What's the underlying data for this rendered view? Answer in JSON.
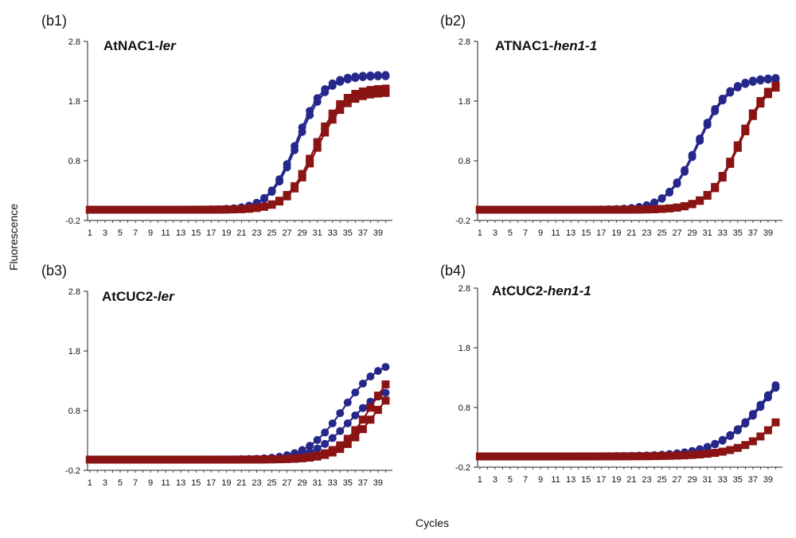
{
  "figure": {
    "ylabel": "Fluorescence",
    "xlabel": "Cycles"
  },
  "colors": {
    "series_a": "#26278a",
    "series_b": "#8a1414",
    "axis": "#222222"
  },
  "chart_data": [
    {
      "type": "line",
      "panel_label": "(b1)",
      "title_plain": "AtNAC1-",
      "title_italic": "ler",
      "ylim": [
        -0.2,
        2.8
      ],
      "yticks": [
        -0.2,
        0.8,
        1.8,
        2.8
      ],
      "ytick_labels": [
        "-0.2",
        "0.8",
        "1.8",
        "2.8"
      ],
      "xlim": [
        1,
        40
      ],
      "xticks": [
        1,
        3,
        5,
        7,
        9,
        11,
        13,
        15,
        17,
        19,
        21,
        23,
        25,
        27,
        29,
        31,
        33,
        35,
        37,
        39
      ],
      "series": [
        {
          "name": "blue-1",
          "color_key": "series_a",
          "marker": "circle",
          "baseline": -0.02,
          "plateau": 2.22,
          "midpoint": 28.4,
          "slope": 0.55
        },
        {
          "name": "blue-2",
          "color_key": "series_a",
          "marker": "circle",
          "baseline": -0.02,
          "plateau": 2.24,
          "midpoint": 28.2,
          "slope": 0.56
        },
        {
          "name": "red-1",
          "color_key": "series_b",
          "marker": "square",
          "baseline": -0.02,
          "plateau": 2.02,
          "midpoint": 30.6,
          "slope": 0.55
        },
        {
          "name": "red-2",
          "color_key": "series_b",
          "marker": "square",
          "baseline": -0.02,
          "plateau": 1.95,
          "midpoint": 30.8,
          "slope": 0.54
        }
      ]
    },
    {
      "type": "line",
      "panel_label": "(b2)",
      "title_plain": "ATNAC1-",
      "title_italic": "hen1-1",
      "ylim": [
        -0.2,
        2.8
      ],
      "yticks": [
        -0.2,
        0.8,
        1.8,
        2.8
      ],
      "ytick_labels": [
        "-0.2",
        "0.8",
        "1.8",
        "2.8"
      ],
      "xlim": [
        1,
        40
      ],
      "xticks": [
        1,
        3,
        5,
        7,
        9,
        11,
        13,
        15,
        17,
        19,
        21,
        23,
        25,
        27,
        29,
        31,
        33,
        35,
        37,
        39
      ],
      "series": [
        {
          "name": "blue-1",
          "color_key": "series_a",
          "marker": "circle",
          "baseline": -0.02,
          "plateau": 2.2,
          "midpoint": 29.7,
          "slope": 0.5
        },
        {
          "name": "blue-2",
          "color_key": "series_a",
          "marker": "circle",
          "baseline": -0.02,
          "plateau": 2.18,
          "midpoint": 29.8,
          "slope": 0.5
        },
        {
          "name": "red-1",
          "color_key": "series_b",
          "marker": "square",
          "baseline": -0.02,
          "plateau": 2.25,
          "midpoint": 35.2,
          "slope": 0.5
        },
        {
          "name": "red-2",
          "color_key": "series_b",
          "marker": "square",
          "baseline": -0.02,
          "plateau": 2.22,
          "midpoint": 35.3,
          "slope": 0.5
        }
      ]
    },
    {
      "type": "line",
      "panel_label": "(b3)",
      "title_plain": "AtCUC2-",
      "title_italic": "ler",
      "ylim": [
        -0.2,
        2.8
      ],
      "yticks": [
        -0.2,
        0.8,
        1.8,
        2.8
      ],
      "ytick_labels": [
        "-0.2",
        "0.8",
        "1.8",
        "2.8"
      ],
      "xlim": [
        1,
        40
      ],
      "xticks": [
        1,
        3,
        5,
        7,
        9,
        11,
        13,
        15,
        17,
        19,
        21,
        23,
        25,
        27,
        29,
        31,
        33,
        35,
        37,
        39
      ],
      "series": [
        {
          "name": "blue-1",
          "color_key": "series_a",
          "marker": "circle",
          "baseline": -0.02,
          "plateau": 1.68,
          "midpoint": 34.4,
          "slope": 0.42
        },
        {
          "name": "blue-2",
          "color_key": "series_a",
          "marker": "circle",
          "baseline": -0.02,
          "plateau": 1.25,
          "midpoint": 35.2,
          "slope": 0.42
        },
        {
          "name": "red-1",
          "color_key": "series_b",
          "marker": "square",
          "baseline": -0.02,
          "plateau": 1.8,
          "midpoint": 38.2,
          "slope": 0.45
        },
        {
          "name": "red-2",
          "color_key": "series_b",
          "marker": "square",
          "baseline": -0.02,
          "plateau": 1.45,
          "midpoint": 38.4,
          "slope": 0.45
        }
      ]
    },
    {
      "type": "line",
      "panel_label": "(b4)",
      "title_plain": "AtCUC2-",
      "title_italic": "hen1-1",
      "ylim": [
        -0.2,
        2.8
      ],
      "yticks": [
        -0.2,
        0.8,
        1.8,
        2.8
      ],
      "ytick_labels": [
        "-0.2",
        "0.8",
        "1.8",
        "2.8"
      ],
      "xlim": [
        1,
        40
      ],
      "xticks": [
        1,
        3,
        5,
        7,
        9,
        11,
        13,
        15,
        17,
        19,
        21,
        23,
        25,
        27,
        29,
        31,
        33,
        35,
        37,
        39
      ],
      "series": [
        {
          "name": "blue-1",
          "color_key": "series_a",
          "marker": "circle",
          "baseline": -0.02,
          "plateau": 2.2,
          "midpoint": 39.5,
          "slope": 0.3
        },
        {
          "name": "blue-2",
          "color_key": "series_a",
          "marker": "circle",
          "baseline": -0.02,
          "plateau": 2.15,
          "midpoint": 39.6,
          "slope": 0.3
        },
        {
          "name": "red-1",
          "color_key": "series_b",
          "marker": "square",
          "baseline": -0.02,
          "plateau": 4.0,
          "midpoint": 46.0,
          "slope": 0.3
        }
      ]
    }
  ]
}
